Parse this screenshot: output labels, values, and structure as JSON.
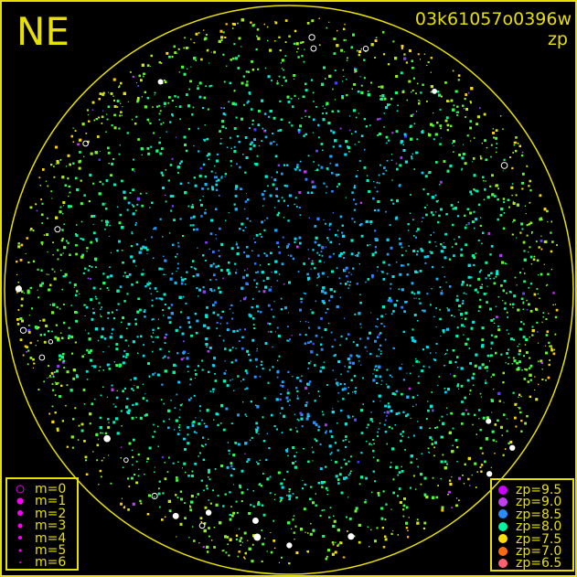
{
  "header": {
    "direction": "NE",
    "image_id": "03k61057o0396w",
    "quantity": "zp"
  },
  "legend_magnitude": [
    {
      "label": "m=0",
      "size": 7,
      "hollow": true
    },
    {
      "label": "m=1",
      "size": 7
    },
    {
      "label": "m=2",
      "size": 6
    },
    {
      "label": "m=3",
      "size": 5
    },
    {
      "label": "m=4",
      "size": 4
    },
    {
      "label": "m=5",
      "size": 3
    },
    {
      "label": "m=6",
      "size": 2
    }
  ],
  "legend_zp": [
    {
      "label": "zp=9.5",
      "value": 9.5,
      "color": "#cc00ff"
    },
    {
      "label": "zp=9.0",
      "value": 9.0,
      "color": "#c040f0"
    },
    {
      "label": "zp=8.5",
      "value": 8.5,
      "color": "#2a8cff"
    },
    {
      "label": "zp=8.0",
      "value": 8.0,
      "color": "#00f5a0"
    },
    {
      "label": "zp=7.5",
      "value": 7.5,
      "color": "#ffe000"
    },
    {
      "label": "zp=7.0",
      "value": 7.0,
      "color": "#ff6a10"
    },
    {
      "label": "zp=6.5",
      "value": 6.5,
      "color": "#ff6070"
    }
  ],
  "chart_data": {
    "type": "scatter",
    "title": "03k61057o0396w",
    "subtitle": "zp",
    "color_scale": "zp",
    "size_scale": "m",
    "boundary": "circle",
    "boundary_color": "#e8e000",
    "legend_placement": [
      "bottom-left",
      "bottom-right"
    ]
  }
}
